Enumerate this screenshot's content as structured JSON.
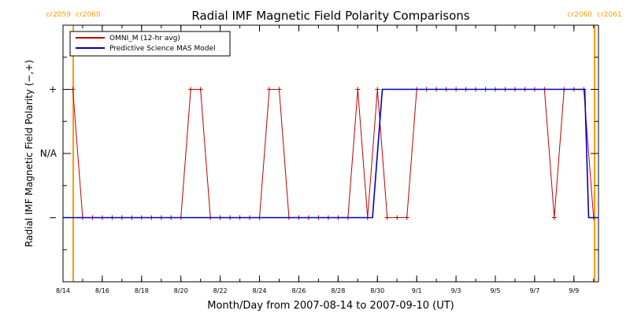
{
  "chart_data": {
    "type": "line",
    "title": "Radial IMF Magnetic Field Polarity Comparisons",
    "xlabel": "Month/Day from 2007-08-14 to 2007-09-10 (UT)",
    "ylabel": "Radial IMF Magnetic Field Polarity (−,+)",
    "xlim": [
      0,
      27.25
    ],
    "ylim": [
      -2,
      2
    ],
    "x_tick_labels": [
      "8/14",
      "8/16",
      "8/18",
      "8/20",
      "8/22",
      "8/24",
      "8/26",
      "8/28",
      "8/30",
      "9/1",
      "9/3",
      "9/5",
      "9/7",
      "9/9"
    ],
    "x_tick_days": [
      0,
      2,
      4,
      6,
      8,
      10,
      12,
      14,
      16,
      18,
      20,
      22,
      24,
      26
    ],
    "y_tick_labels": [
      "+",
      "N/A",
      "−"
    ],
    "y_tick_values": [
      1,
      0,
      -1
    ],
    "carrington_markers": [
      {
        "day": 0.5,
        "left_label": "cr2059",
        "right_label": "cr2060"
      },
      {
        "day": 27.25,
        "left_label": "cr2060",
        "right_label": "cr2061"
      }
    ],
    "marker_color": "#FF9900",
    "series": [
      {
        "name": "OMNI_M (12-hr avg)",
        "color": "#C00000",
        "markers": true,
        "x": [
          0.5,
          1.0,
          1.5,
          2.0,
          2.5,
          3.0,
          3.5,
          4.0,
          4.5,
          5.0,
          5.5,
          6.0,
          6.5,
          7.0,
          7.5,
          8.0,
          8.5,
          9.0,
          9.5,
          10.0,
          10.5,
          11.0,
          11.5,
          12.0,
          12.5,
          13.0,
          13.5,
          14.0,
          14.5,
          15.0,
          15.5,
          16.0,
          16.5,
          17.0,
          17.5,
          18.0,
          18.5,
          19.0,
          19.5,
          20.0,
          20.5,
          21.0,
          21.5,
          22.0,
          22.5,
          23.0,
          23.5,
          24.0,
          24.5,
          25.0,
          25.5,
          26.0,
          26.5,
          27.0
        ],
        "values": [
          1,
          -1,
          -1,
          -1,
          -1,
          -1,
          -1,
          -1,
          -1,
          -1,
          -1,
          -1,
          1,
          1,
          -1,
          -1,
          -1,
          -1,
          -1,
          -1,
          1,
          1,
          -1,
          -1,
          -1,
          -1,
          -1,
          -1,
          -1,
          1,
          -1,
          1,
          -1,
          -1,
          -1,
          1,
          1,
          1,
          1,
          1,
          1,
          1,
          1,
          1,
          1,
          1,
          1,
          1,
          1,
          -1,
          1,
          1,
          1,
          -1
        ]
      },
      {
        "name": "Predictive Science MAS Model",
        "color": "#0000C0",
        "markers": false,
        "x": [
          0,
          15.75,
          16.25,
          26.55,
          26.75,
          27.25
        ],
        "values": [
          -1,
          -1,
          1,
          1,
          -1,
          -1
        ]
      }
    ]
  }
}
